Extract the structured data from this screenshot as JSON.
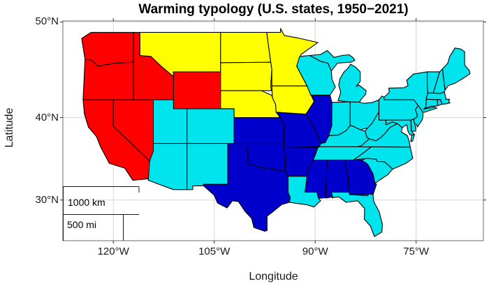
{
  "title": "Warming typology (U.S. states, 1950−2021)",
  "axes": {
    "x": {
      "label": "Longitude",
      "ticks": [
        {
          "value": -120,
          "label": "120°W"
        },
        {
          "value": -105,
          "label": "105°W"
        },
        {
          "value": -90,
          "label": "90°W"
        },
        {
          "value": -75,
          "label": "75°W"
        }
      ]
    },
    "y": {
      "label": "Latitude",
      "ticks": [
        {
          "value": 50,
          "label": "50°N"
        },
        {
          "value": 40,
          "label": "40°N"
        },
        {
          "value": 30,
          "label": "30°N"
        }
      ]
    }
  },
  "scalebar": {
    "km": "1000 km",
    "mi": "500 mi"
  },
  "colors": {
    "frame": "#848484",
    "grid": "#d8d8d8",
    "tick": "#2b2b2b",
    "state_border": "#000000",
    "scalebar_line": "#1a1a1a",
    "background": "#ffffff"
  },
  "chart_data": {
    "type": "choropleth",
    "title": "Warming typology (U.S. states, 1950−2021)",
    "xlabel": "Longitude",
    "ylabel": "Latitude",
    "x_ticks": [
      "120°W",
      "105°W",
      "90°W",
      "75°W"
    ],
    "y_ticks": [
      "50°N",
      "40°N",
      "30°N"
    ],
    "lon_range": [
      -127.5,
      -65
    ],
    "lat_range": [
      24.6,
      50.1
    ],
    "projection": "mercator",
    "grid": true,
    "legend": false,
    "scalebar": {
      "km": "1000 km",
      "mi": "500 mi"
    },
    "classes": [
      {
        "id": "red",
        "color": "#ff0000",
        "states": [
          "WA",
          "OR",
          "CA",
          "ID",
          "NV",
          "WY"
        ]
      },
      {
        "id": "yellow",
        "color": "#ffff00",
        "states": [
          "MT",
          "ND",
          "SD",
          "NE",
          "MN",
          "IA"
        ]
      },
      {
        "id": "dark-blue",
        "color": "#0000cd",
        "states": [
          "KS",
          "MO",
          "IL",
          "OK",
          "AR",
          "TX",
          "MS",
          "AL",
          "GA"
        ]
      },
      {
        "id": "cyan",
        "color": "#00e4ee",
        "states": [
          "UT",
          "CO",
          "AZ",
          "NM",
          "WI",
          "MI",
          "IN",
          "OH",
          "KY",
          "TN",
          "LA",
          "FL",
          "SC",
          "NC",
          "VA",
          "WV",
          "PA",
          "NY",
          "NJ",
          "DE",
          "MD",
          "CT",
          "RI",
          "MA",
          "VT",
          "NH",
          "ME"
        ]
      }
    ]
  }
}
